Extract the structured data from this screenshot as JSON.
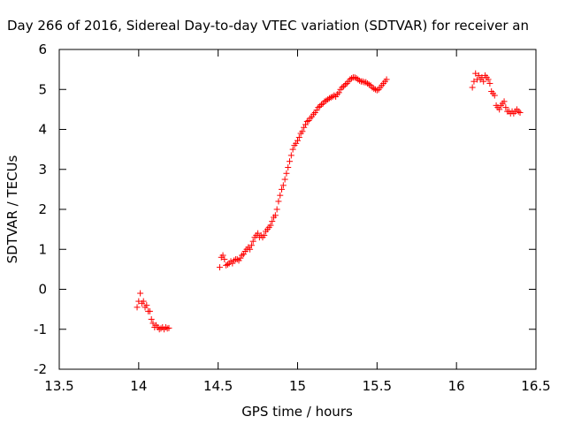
{
  "chart_data": {
    "type": "scatter",
    "title": "Day 266 of 2016, Sidereal Day-to-day VTEC variation (SDTVAR) for receiver an",
    "xlabel": "GPS time / hours",
    "ylabel": "SDTVAR / TECUs",
    "xlim": [
      13.5,
      16.5
    ],
    "ylim": [
      -2,
      6
    ],
    "xticks": [
      13.5,
      14,
      14.5,
      15,
      15.5,
      16,
      16.5
    ],
    "xtick_labels": [
      "13.5",
      "14",
      "14.5",
      "15",
      "15.5",
      "16",
      "16.5"
    ],
    "yticks": [
      -2,
      -1,
      0,
      1,
      2,
      3,
      4,
      5,
      6
    ],
    "ytick_labels": [
      "-2",
      "-1",
      "0",
      "1",
      "2",
      "3",
      "4",
      "5",
      "6"
    ],
    "grid": false,
    "legend": "none",
    "marker": "plus",
    "color": "#ff0000",
    "series": [
      {
        "points": [
          [
            13.99,
            -0.45
          ],
          [
            14.0,
            -0.3
          ],
          [
            14.01,
            -0.1
          ],
          [
            14.02,
            -0.35
          ],
          [
            14.03,
            -0.3
          ],
          [
            14.04,
            -0.45
          ],
          [
            14.05,
            -0.4
          ],
          [
            14.06,
            -0.55
          ],
          [
            14.07,
            -0.55
          ],
          [
            14.08,
            -0.75
          ],
          [
            14.09,
            -0.85
          ],
          [
            14.1,
            -0.95
          ],
          [
            14.11,
            -0.9
          ],
          [
            14.12,
            -0.95
          ],
          [
            14.13,
            -1.0
          ],
          [
            14.14,
            -0.98
          ],
          [
            14.15,
            -0.95
          ],
          [
            14.16,
            -1.0
          ],
          [
            14.17,
            -0.95
          ],
          [
            14.18,
            -0.98
          ],
          [
            14.19,
            -0.97
          ],
          [
            14.51,
            0.55
          ],
          [
            14.52,
            0.8
          ],
          [
            14.53,
            0.85
          ],
          [
            14.54,
            0.75
          ],
          [
            14.55,
            0.6
          ],
          [
            14.56,
            0.62
          ],
          [
            14.57,
            0.65
          ],
          [
            14.58,
            0.7
          ],
          [
            14.59,
            0.65
          ],
          [
            14.6,
            0.72
          ],
          [
            14.61,
            0.75
          ],
          [
            14.62,
            0.75
          ],
          [
            14.63,
            0.72
          ],
          [
            14.64,
            0.78
          ],
          [
            14.65,
            0.85
          ],
          [
            14.66,
            0.88
          ],
          [
            14.67,
            0.95
          ],
          [
            14.68,
            1.0
          ],
          [
            14.69,
            1.05
          ],
          [
            14.7,
            1.0
          ],
          [
            14.71,
            1.1
          ],
          [
            14.72,
            1.2
          ],
          [
            14.73,
            1.3
          ],
          [
            14.74,
            1.35
          ],
          [
            14.75,
            1.4
          ],
          [
            14.76,
            1.3
          ],
          [
            14.77,
            1.35
          ],
          [
            14.78,
            1.3
          ],
          [
            14.79,
            1.35
          ],
          [
            14.8,
            1.45
          ],
          [
            14.81,
            1.5
          ],
          [
            14.82,
            1.55
          ],
          [
            14.83,
            1.6
          ],
          [
            14.84,
            1.7
          ],
          [
            14.85,
            1.8
          ],
          [
            14.86,
            1.85
          ],
          [
            14.87,
            2.0
          ],
          [
            14.88,
            2.2
          ],
          [
            14.89,
            2.35
          ],
          [
            14.9,
            2.5
          ],
          [
            14.91,
            2.6
          ],
          [
            14.92,
            2.75
          ],
          [
            14.93,
            2.9
          ],
          [
            14.94,
            3.05
          ],
          [
            14.95,
            3.2
          ],
          [
            14.96,
            3.35
          ],
          [
            14.97,
            3.5
          ],
          [
            14.98,
            3.6
          ],
          [
            14.99,
            3.65
          ],
          [
            15.0,
            3.72
          ],
          [
            15.01,
            3.8
          ],
          [
            15.02,
            3.9
          ],
          [
            15.03,
            3.95
          ],
          [
            15.04,
            4.05
          ],
          [
            15.05,
            4.12
          ],
          [
            15.06,
            4.2
          ],
          [
            15.07,
            4.22
          ],
          [
            15.08,
            4.28
          ],
          [
            15.09,
            4.32
          ],
          [
            15.1,
            4.38
          ],
          [
            15.11,
            4.42
          ],
          [
            15.12,
            4.48
          ],
          [
            15.13,
            4.55
          ],
          [
            15.14,
            4.58
          ],
          [
            15.15,
            4.62
          ],
          [
            15.16,
            4.65
          ],
          [
            15.17,
            4.7
          ],
          [
            15.18,
            4.72
          ],
          [
            15.19,
            4.75
          ],
          [
            15.2,
            4.78
          ],
          [
            15.21,
            4.8
          ],
          [
            15.22,
            4.82
          ],
          [
            15.23,
            4.85
          ],
          [
            15.24,
            4.82
          ],
          [
            15.25,
            4.88
          ],
          [
            15.26,
            4.92
          ],
          [
            15.27,
            5.0
          ],
          [
            15.28,
            5.05
          ],
          [
            15.29,
            5.08
          ],
          [
            15.3,
            5.12
          ],
          [
            15.31,
            5.15
          ],
          [
            15.32,
            5.2
          ],
          [
            15.33,
            5.25
          ],
          [
            15.34,
            5.28
          ],
          [
            15.35,
            5.3
          ],
          [
            15.36,
            5.3
          ],
          [
            15.37,
            5.28
          ],
          [
            15.38,
            5.25
          ],
          [
            15.39,
            5.22
          ],
          [
            15.4,
            5.2
          ],
          [
            15.41,
            5.2
          ],
          [
            15.42,
            5.18
          ],
          [
            15.43,
            5.18
          ],
          [
            15.44,
            5.15
          ],
          [
            15.45,
            5.12
          ],
          [
            15.46,
            5.1
          ],
          [
            15.47,
            5.05
          ],
          [
            15.48,
            5.02
          ],
          [
            15.49,
            5.0
          ],
          [
            15.5,
            4.98
          ],
          [
            15.51,
            5.0
          ],
          [
            15.52,
            5.05
          ],
          [
            15.53,
            5.1
          ],
          [
            15.54,
            5.15
          ],
          [
            15.55,
            5.2
          ],
          [
            15.56,
            5.25
          ],
          [
            16.1,
            5.05
          ],
          [
            16.11,
            5.2
          ],
          [
            16.12,
            5.4
          ],
          [
            16.13,
            5.25
          ],
          [
            16.14,
            5.35
          ],
          [
            16.15,
            5.25
          ],
          [
            16.16,
            5.3
          ],
          [
            16.17,
            5.2
          ],
          [
            16.18,
            5.35
          ],
          [
            16.19,
            5.3
          ],
          [
            16.2,
            5.25
          ],
          [
            16.21,
            5.15
          ],
          [
            16.22,
            4.95
          ],
          [
            16.23,
            4.9
          ],
          [
            16.24,
            4.85
          ],
          [
            16.25,
            4.6
          ],
          [
            16.26,
            4.55
          ],
          [
            16.27,
            4.5
          ],
          [
            16.28,
            4.6
          ],
          [
            16.29,
            4.65
          ],
          [
            16.3,
            4.7
          ],
          [
            16.31,
            4.55
          ],
          [
            16.32,
            4.45
          ],
          [
            16.33,
            4.45
          ],
          [
            16.34,
            4.4
          ],
          [
            16.35,
            4.45
          ],
          [
            16.36,
            4.4
          ],
          [
            16.37,
            4.45
          ],
          [
            16.38,
            4.5
          ],
          [
            16.39,
            4.45
          ],
          [
            16.4,
            4.42
          ]
        ]
      }
    ]
  }
}
